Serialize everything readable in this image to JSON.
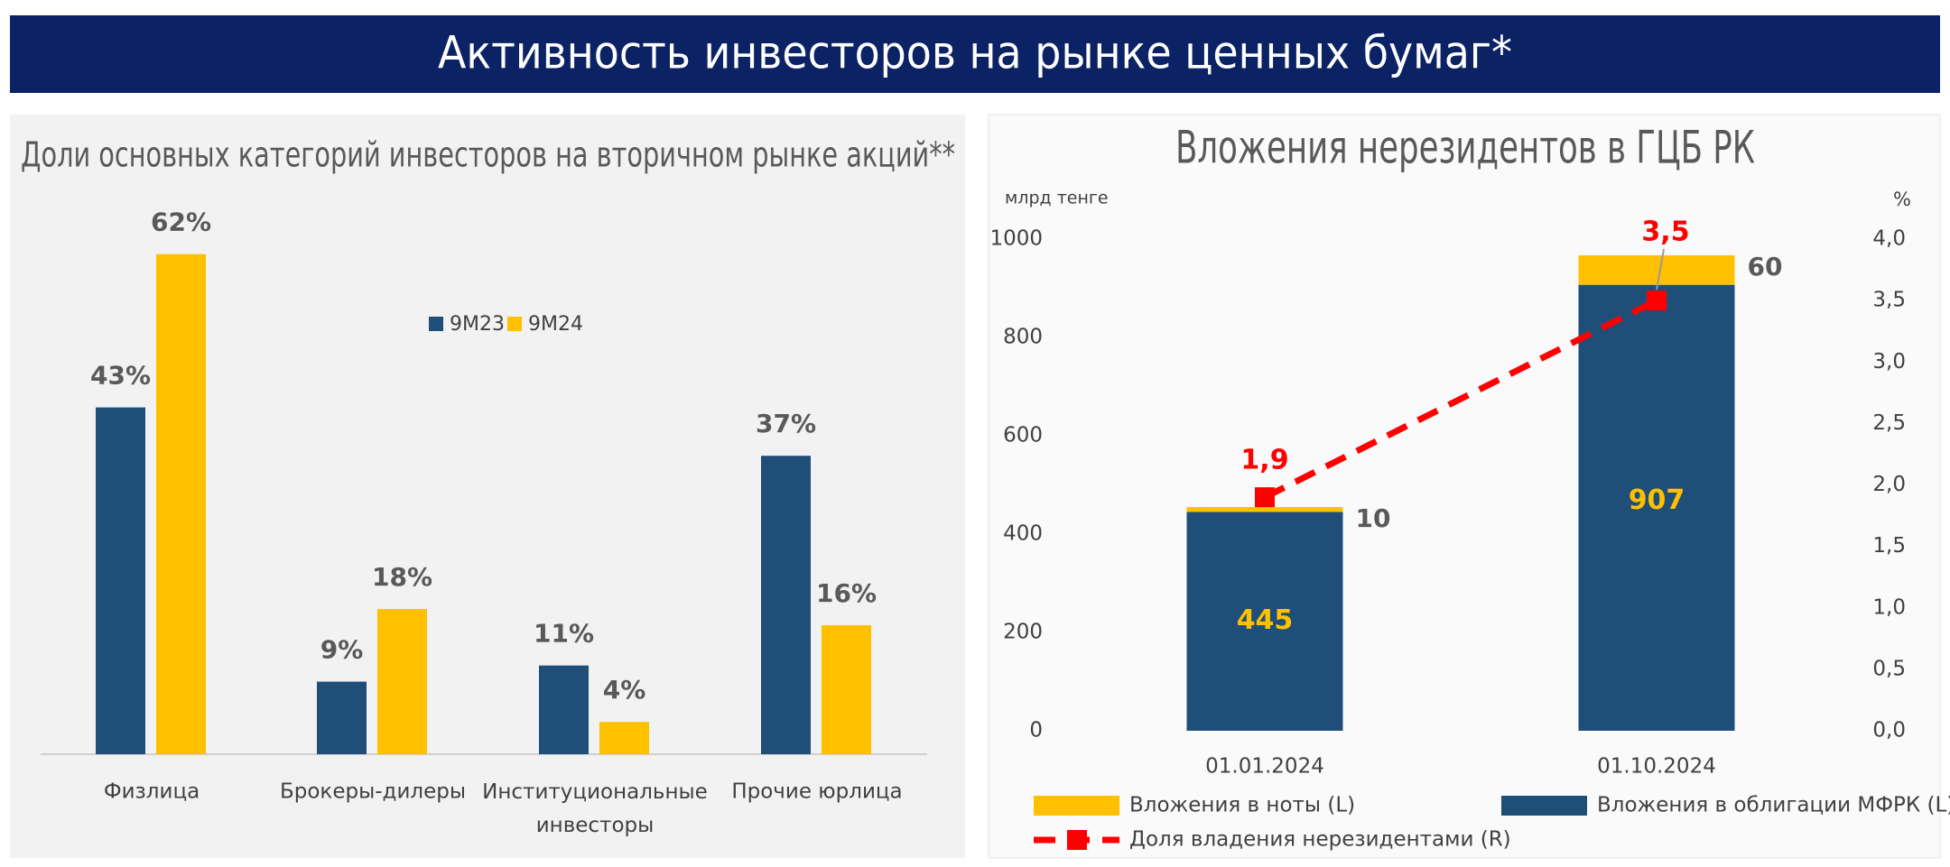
{
  "header": {
    "title": "Активность инвесторов на рынке ценных бумаг*"
  },
  "chart_data": [
    {
      "type": "bar",
      "title": "Доли основных категорий инвесторов на вторичном рынке акций**",
      "categories": [
        "Физлица",
        "Брокеры-дилеры",
        "Институциональные инвесторы",
        "Прочие юрлица"
      ],
      "series": [
        {
          "name": "9M23",
          "color": "#1f4e79",
          "values": [
            43,
            9,
            11,
            37
          ],
          "value_labels": [
            "43%",
            "9%",
            "11%",
            "37%"
          ]
        },
        {
          "name": "9M24",
          "color": "#ffc000",
          "values": [
            62,
            18,
            4,
            16
          ],
          "value_labels": [
            "62%",
            "18%",
            "4%",
            "16%"
          ]
        }
      ]
    },
    {
      "type": "stacked_bar_line",
      "title": "Вложения нерезидентов в ГЦБ РК",
      "y_label": "млрд тенге",
      "y2_label": "%",
      "categories": [
        "01.01.2024",
        "01.10.2024"
      ],
      "ylim": [
        0,
        1000
      ],
      "yticks": [
        0,
        200,
        400,
        600,
        800,
        1000
      ],
      "y2lim": [
        0,
        4
      ],
      "y2ticks": [
        {
          "value": 0,
          "label": "0,0"
        },
        {
          "value": 0.5,
          "label": "0,5"
        },
        {
          "value": 1,
          "label": "1,0"
        },
        {
          "value": 1.5,
          "label": "1,5"
        },
        {
          "value": 2,
          "label": "2,0"
        },
        {
          "value": 2.5,
          "label": "2,5"
        },
        {
          "value": 3,
          "label": "3,0"
        },
        {
          "value": 3.5,
          "label": "3,5"
        },
        {
          "value": 4,
          "label": "4,0"
        }
      ],
      "series": [
        {
          "name": "Вложения в облигации МФРК (L)",
          "color": "#1f4e79",
          "values": [
            445,
            907
          ]
        },
        {
          "name": "Вложения в ноты (L)",
          "color": "#ffc000",
          "values": [
            10,
            60
          ]
        },
        {
          "name": "Доля владения нерезидентами (R)",
          "color": "#ff0000",
          "axis": "y2",
          "values": [
            1.9,
            3.5
          ],
          "value_labels": [
            "1,9",
            "3,5"
          ]
        }
      ]
    }
  ]
}
